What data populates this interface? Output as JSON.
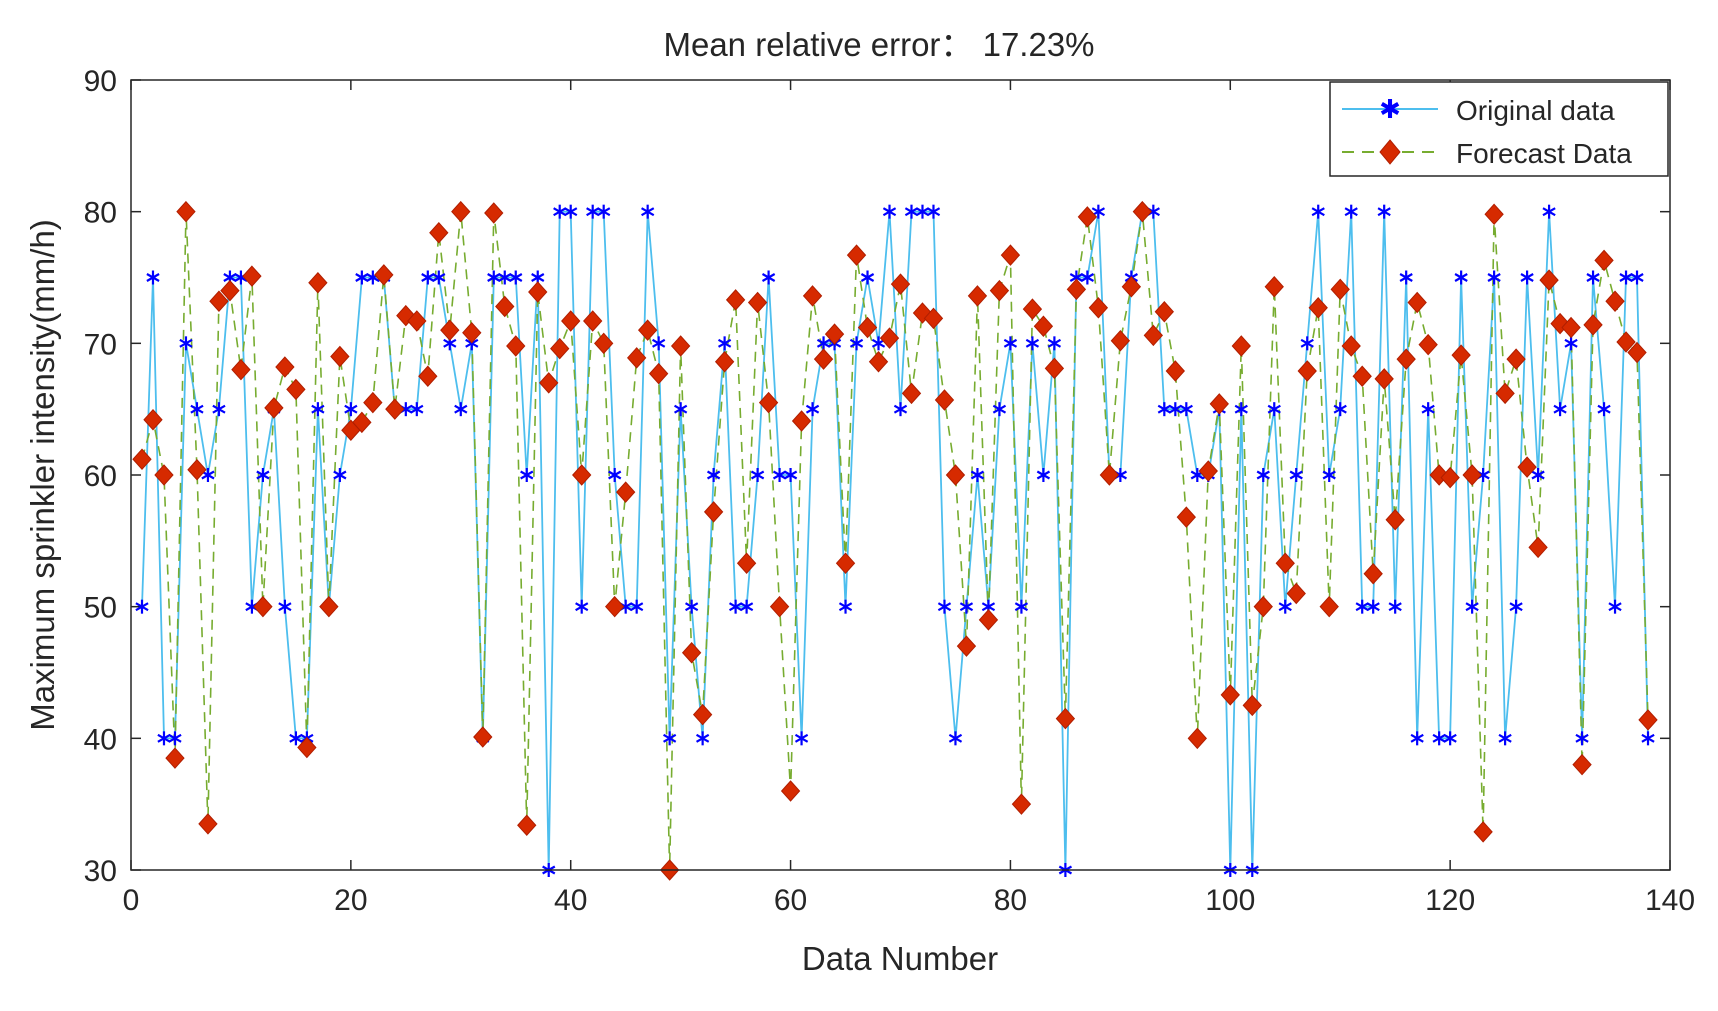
{
  "chart_data": {
    "type": "line",
    "title": "Mean relative error： 17.23%",
    "xlabel": "Data Number",
    "ylabel": "Maximum sprinkler intensity(mm/h)",
    "xlim": [
      0,
      140
    ],
    "ylim": [
      30,
      90
    ],
    "xticks": [
      0,
      20,
      40,
      60,
      80,
      100,
      120,
      140
    ],
    "yticks": [
      30,
      40,
      50,
      60,
      70,
      80,
      90
    ],
    "grid": false,
    "legend_position": "top-right",
    "series": [
      {
        "name": "Original data",
        "color": "#4DBEEE",
        "marker_color": "#0000FF",
        "line_style": "solid",
        "marker": "asterisk",
        "x": [
          1,
          2,
          3,
          4,
          5,
          6,
          7,
          8,
          9,
          10,
          11,
          12,
          13,
          14,
          15,
          16,
          17,
          18,
          19,
          20,
          21,
          22,
          23,
          24,
          25,
          26,
          27,
          28,
          29,
          30,
          31,
          32,
          33,
          34,
          35,
          36,
          37,
          38,
          39,
          40,
          41,
          42,
          43,
          44,
          45,
          46,
          47,
          48,
          49,
          50,
          51,
          52,
          53,
          54,
          55,
          56,
          57,
          58,
          59,
          60,
          61,
          62,
          63,
          64,
          65,
          66,
          67,
          68,
          69,
          70,
          71,
          72,
          73,
          74,
          75,
          76,
          77,
          78,
          79,
          80,
          81,
          82,
          83,
          84,
          85,
          86,
          87,
          88,
          89,
          90,
          91,
          92,
          93,
          94,
          95,
          96,
          97,
          98,
          99,
          100,
          101,
          102,
          103,
          104,
          105,
          106,
          107,
          108,
          109,
          110,
          111,
          112,
          113,
          114,
          115,
          116,
          117,
          118,
          119,
          120,
          121,
          122,
          123,
          124,
          125,
          126,
          127,
          128,
          129,
          130,
          131,
          132,
          133,
          134,
          135,
          136,
          137,
          138
        ],
        "values": [
          50,
          75,
          40,
          40,
          70,
          65,
          60,
          65,
          75,
          75,
          50,
          60,
          65,
          50,
          40,
          40,
          65,
          50,
          60,
          65,
          75,
          75,
          75,
          65,
          65,
          65,
          75,
          75,
          70,
          65,
          70,
          40,
          75,
          75,
          75,
          60,
          75,
          30,
          80,
          80,
          50,
          80,
          80,
          60,
          50,
          50,
          80,
          70,
          40,
          65,
          50,
          40,
          60,
          70,
          50,
          50,
          60,
          75,
          60,
          60,
          40,
          65,
          70,
          70,
          50,
          70,
          75,
          70,
          80,
          65,
          80,
          80,
          80,
          50,
          40,
          50,
          60,
          50,
          65,
          70,
          50,
          70,
          60,
          70,
          30,
          75,
          75,
          80,
          60,
          60,
          75,
          80,
          80,
          65,
          65,
          65,
          60,
          60,
          65,
          30,
          65,
          30,
          60,
          65,
          50,
          60,
          70,
          80,
          60,
          65,
          80,
          50,
          50,
          80,
          50,
          75,
          40,
          65,
          40,
          40,
          75,
          50,
          60,
          75,
          40,
          50,
          75,
          60,
          80,
          65,
          70,
          40,
          75,
          65,
          50,
          75,
          75,
          40
        ]
      },
      {
        "name": "Forecast Data",
        "color": "#77AC30",
        "marker_color": "#D62A00",
        "line_style": "dashed",
        "marker": "diamond",
        "x": [
          1,
          2,
          3,
          4,
          5,
          6,
          7,
          8,
          9,
          10,
          11,
          12,
          13,
          14,
          15,
          16,
          17,
          18,
          19,
          20,
          21,
          22,
          23,
          24,
          25,
          26,
          27,
          28,
          29,
          30,
          31,
          32,
          33,
          34,
          35,
          36,
          37,
          38,
          39,
          40,
          41,
          42,
          43,
          44,
          45,
          46,
          47,
          48,
          49,
          50,
          51,
          52,
          53,
          54,
          55,
          56,
          57,
          58,
          59,
          60,
          61,
          62,
          63,
          64,
          65,
          66,
          67,
          68,
          69,
          70,
          71,
          72,
          73,
          74,
          75,
          76,
          77,
          78,
          79,
          80,
          81,
          82,
          83,
          84,
          85,
          86,
          87,
          88,
          89,
          90,
          91,
          92,
          93,
          94,
          95,
          96,
          97,
          98,
          99,
          100,
          101,
          102,
          103,
          104,
          105,
          106,
          107,
          108,
          109,
          110,
          111,
          112,
          113,
          114,
          115,
          116,
          117,
          118,
          119,
          120,
          121,
          122,
          123,
          124,
          125,
          126,
          127,
          128,
          129,
          130,
          131,
          132,
          133,
          134,
          135,
          136,
          137,
          138
        ],
        "values": [
          61.2,
          64.2,
          60,
          38.5,
          80,
          60.4,
          33.5,
          73.2,
          74,
          68,
          75.1,
          50,
          65.1,
          68.2,
          66.5,
          39.3,
          74.6,
          50,
          69,
          63.4,
          64,
          65.5,
          75.2,
          65,
          72.1,
          71.7,
          67.5,
          78.4,
          71,
          80,
          70.8,
          40.1,
          79.9,
          72.8,
          69.8,
          33.4,
          73.9,
          67,
          69.6,
          71.7,
          60,
          71.7,
          70,
          50,
          58.7,
          68.9,
          71,
          67.7,
          30,
          69.8,
          46.5,
          41.8,
          57.2,
          68.6,
          73.3,
          53.3,
          73.1,
          65.5,
          50,
          36,
          64.1,
          73.6,
          68.8,
          70.7,
          53.3,
          76.7,
          71.2,
          68.6,
          70.4,
          74.5,
          66.2,
          72.3,
          71.9,
          65.7,
          60,
          47,
          73.6,
          49,
          74,
          76.7,
          35,
          72.6,
          71.3,
          68.1,
          41.5,
          74.1,
          79.6,
          72.7,
          60,
          70.2,
          74.3,
          80,
          70.6,
          72.4,
          67.9,
          56.8,
          40,
          60.3,
          65.4,
          43.3,
          69.8,
          42.5,
          50,
          74.3,
          53.3,
          51,
          67.9,
          72.7,
          50,
          74.1,
          69.8,
          67.5,
          52.5,
          67.3,
          56.6,
          68.8,
          73.1,
          69.9,
          60,
          59.8,
          69.1,
          60,
          32.9,
          79.8,
          66.2,
          68.8,
          60.6,
          54.5,
          74.8,
          71.5,
          71.2,
          38,
          71.4,
          76.3,
          73.2,
          70.1,
          69.3,
          41.4
        ]
      }
    ]
  }
}
